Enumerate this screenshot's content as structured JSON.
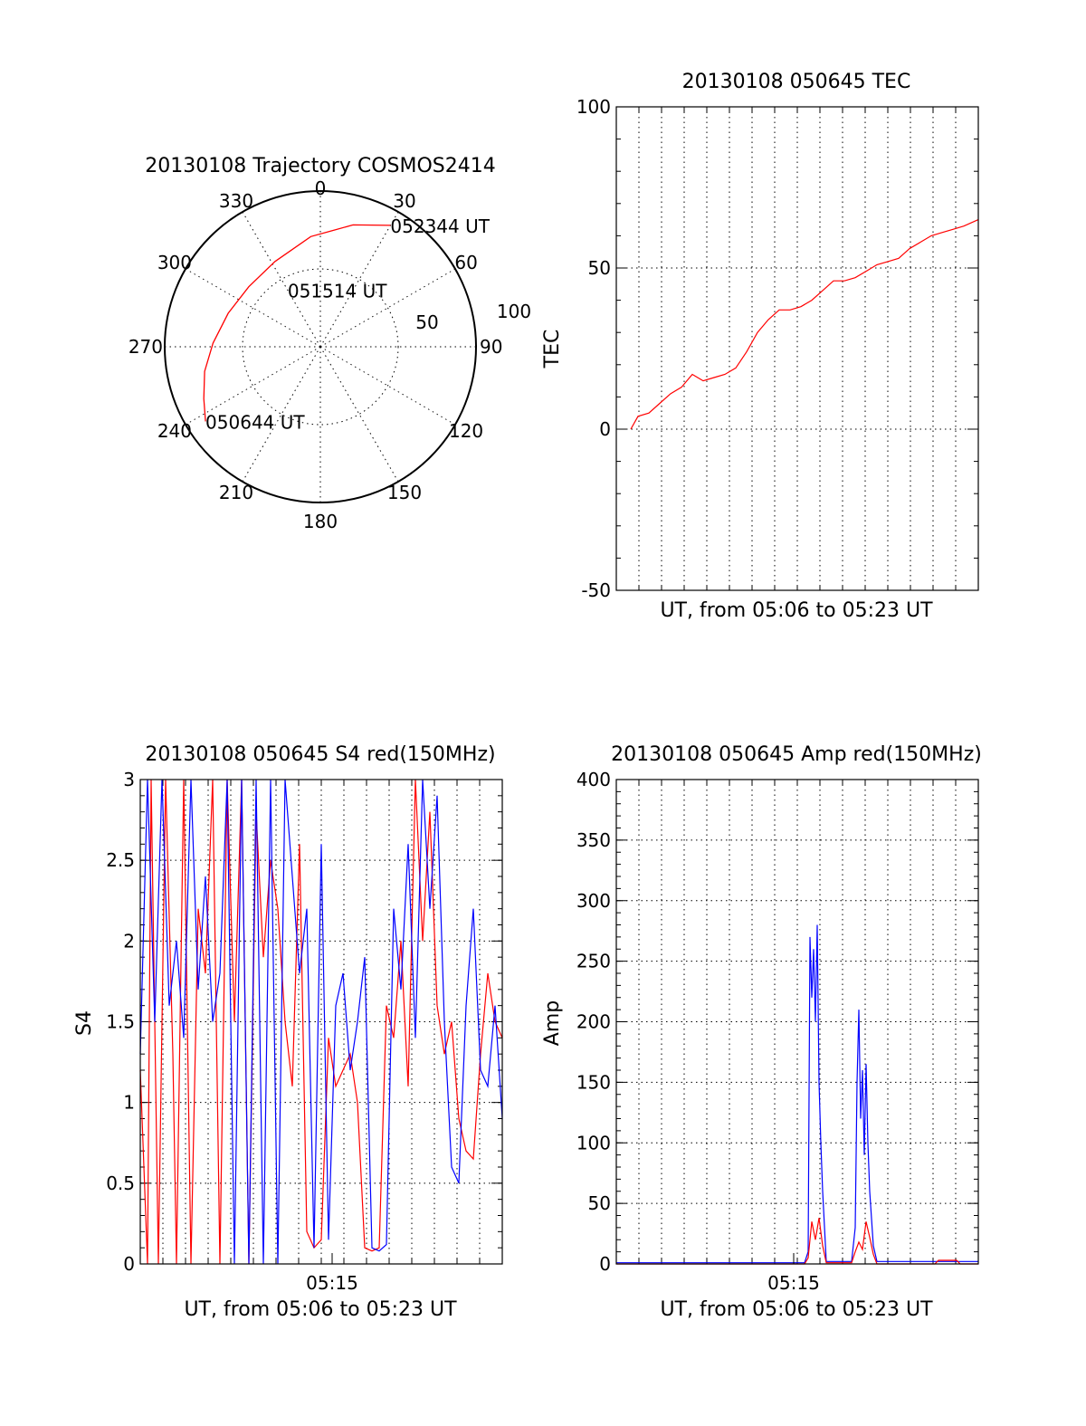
{
  "colors": {
    "red": "#ff0000",
    "blue": "#0000ff",
    "axis": "#000000"
  },
  "chart_data": [
    {
      "id": "trajectory",
      "type": "polar",
      "title": "20130108 Trajectory COSMOS2414",
      "angle_labels": [
        "0",
        "30",
        "60",
        "90",
        "120",
        "150",
        "180",
        "210",
        "240",
        "270",
        "300",
        "330"
      ],
      "radial_labels": [
        "50",
        "100"
      ],
      "radial_values": [
        50,
        100
      ],
      "rlim": [
        0,
        100
      ],
      "series": [
        {
          "color": "#ff0000",
          "az": [
            237,
            246,
            258,
            272,
            290,
            310,
            332,
            355,
            15,
            30
          ],
          "r": [
            88,
            82,
            76,
            69,
            63,
            60,
            62,
            71,
            81,
            90
          ]
        }
      ],
      "annotations": [
        {
          "text": "052344 UT",
          "az": 30,
          "r": 90
        },
        {
          "text": "051514 UT",
          "az": 330,
          "r": 42
        },
        {
          "text": "050644 UT",
          "az": 237,
          "r": 88
        }
      ]
    },
    {
      "id": "tec",
      "type": "line",
      "title": "20130108 050645 TEC",
      "xlabel": "UT, from 05:06 to 05:23 UT",
      "ylabel": "TEC",
      "ylim": [
        -50,
        100
      ],
      "yticks": [
        "-50",
        "0",
        "50",
        "100"
      ],
      "ytick_values": [
        -50,
        0,
        50,
        100
      ],
      "xlim": [
        0,
        1
      ],
      "grid": true,
      "series": [
        {
          "color": "#ff0000",
          "x": [
            0.04,
            0.06,
            0.09,
            0.12,
            0.15,
            0.18,
            0.21,
            0.24,
            0.27,
            0.3,
            0.33,
            0.36,
            0.39,
            0.42,
            0.45,
            0.48,
            0.51,
            0.54,
            0.57,
            0.6,
            0.63,
            0.66,
            0.69,
            0.72,
            0.75,
            0.78,
            0.81,
            0.84,
            0.87,
            0.9,
            0.93,
            0.96,
            1.0
          ],
          "y": [
            0,
            4,
            5,
            8,
            11,
            13,
            17,
            15,
            16,
            17,
            19,
            24,
            30,
            34,
            37,
            37,
            38,
            40,
            43,
            46,
            46,
            47,
            49,
            51,
            52,
            53,
            56,
            58,
            60,
            61,
            62,
            63,
            65
          ]
        }
      ]
    },
    {
      "id": "s4",
      "type": "line",
      "title": "20130108 050645 S4 red(150MHz)",
      "xlabel": "UT, from 05:06 to 05:23 UT",
      "ylabel": "S4",
      "ylim": [
        0,
        3
      ],
      "yticks": [
        "0",
        "0.5",
        "1",
        "1.5",
        "2",
        "2.5",
        "3"
      ],
      "ytick_values": [
        0,
        0.5,
        1,
        1.5,
        2,
        2.5,
        3
      ],
      "xticks": [
        "05:15"
      ],
      "xtick_positions": [
        0.53
      ],
      "xlim": [
        0,
        1
      ],
      "grid": true,
      "series": [
        {
          "color": "#ff0000",
          "x": [
            0.0,
            0.02,
            0.03,
            0.05,
            0.07,
            0.09,
            0.1,
            0.12,
            0.14,
            0.16,
            0.18,
            0.2,
            0.22,
            0.24,
            0.26,
            0.28,
            0.3,
            0.32,
            0.34,
            0.36,
            0.38,
            0.4,
            0.42,
            0.44,
            0.46,
            0.48,
            0.5,
            0.52,
            0.54,
            0.56,
            0.58,
            0.6,
            0.62,
            0.64,
            0.66,
            0.68,
            0.7,
            0.72,
            0.74,
            0.76,
            0.78,
            0.8,
            0.82,
            0.84,
            0.86,
            0.88,
            0.9,
            0.92,
            0.94,
            0.96,
            0.98,
            1.0
          ],
          "y": [
            1.2,
            0.0,
            3.0,
            0.0,
            3.0,
            1.3,
            0.0,
            3.0,
            0.0,
            2.2,
            1.8,
            3.0,
            0.0,
            3.0,
            1.5,
            3.0,
            0.0,
            2.8,
            1.9,
            2.5,
            2.2,
            1.5,
            1.1,
            2.6,
            0.2,
            0.1,
            0.15,
            1.4,
            1.1,
            1.2,
            1.3,
            1.0,
            0.1,
            0.08,
            0.1,
            1.6,
            1.4,
            2.0,
            1.1,
            3.0,
            2.0,
            2.8,
            1.6,
            1.3,
            1.5,
            0.9,
            0.7,
            0.65,
            1.3,
            1.8,
            1.5,
            1.4
          ]
        },
        {
          "color": "#0000ff",
          "x": [
            0.0,
            0.02,
            0.04,
            0.06,
            0.08,
            0.1,
            0.12,
            0.14,
            0.16,
            0.18,
            0.2,
            0.22,
            0.24,
            0.26,
            0.28,
            0.3,
            0.32,
            0.34,
            0.36,
            0.38,
            0.4,
            0.42,
            0.44,
            0.46,
            0.48,
            0.5,
            0.52,
            0.54,
            0.56,
            0.58,
            0.6,
            0.62,
            0.64,
            0.66,
            0.68,
            0.7,
            0.72,
            0.74,
            0.76,
            0.78,
            0.8,
            0.82,
            0.84,
            0.86,
            0.88,
            0.9,
            0.92,
            0.94,
            0.96,
            0.98,
            1.0
          ],
          "y": [
            1.3,
            3.0,
            1.5,
            3.0,
            1.6,
            2.0,
            1.4,
            3.0,
            1.7,
            2.4,
            1.5,
            1.8,
            3.0,
            0.0,
            3.0,
            0.0,
            3.0,
            0.0,
            3.0,
            0.0,
            3.0,
            2.4,
            1.8,
            2.2,
            0.1,
            2.6,
            0.15,
            1.6,
            1.8,
            1.2,
            1.5,
            1.9,
            0.1,
            0.08,
            0.12,
            2.2,
            1.7,
            2.6,
            1.4,
            3.0,
            2.2,
            2.9,
            1.5,
            0.6,
            0.5,
            1.6,
            2.2,
            1.2,
            1.1,
            1.6,
            0.9
          ]
        }
      ]
    },
    {
      "id": "amp",
      "type": "line",
      "title": "20130108 050645 Amp red(150MHz)",
      "xlabel": "UT, from 05:06 to 05:23 UT",
      "ylabel": "Amp",
      "ylim": [
        0,
        400
      ],
      "yticks": [
        "0",
        "50",
        "100",
        "150",
        "200",
        "250",
        "300",
        "350",
        "400"
      ],
      "ytick_values": [
        0,
        50,
        100,
        150,
        200,
        250,
        300,
        350,
        400
      ],
      "xticks": [
        "05:15"
      ],
      "xtick_positions": [
        0.49
      ],
      "xlim": [
        0,
        1
      ],
      "grid": true,
      "series": [
        {
          "color": "#0000ff",
          "x": [
            0.0,
            0.52,
            0.53,
            0.535,
            0.54,
            0.545,
            0.55,
            0.555,
            0.56,
            0.565,
            0.57,
            0.58,
            0.65,
            0.66,
            0.665,
            0.67,
            0.675,
            0.68,
            0.685,
            0.69,
            0.695,
            0.7,
            0.71,
            0.72,
            1.0
          ],
          "y": [
            1,
            1,
            10,
            270,
            220,
            260,
            200,
            280,
            150,
            100,
            60,
            2,
            2,
            30,
            150,
            210,
            120,
            160,
            90,
            165,
            100,
            60,
            15,
            2,
            2
          ]
        },
        {
          "color": "#ff0000",
          "x": [
            0.0,
            0.52,
            0.53,
            0.54,
            0.55,
            0.56,
            0.57,
            0.58,
            0.65,
            0.66,
            0.67,
            0.68,
            0.69,
            0.7,
            0.71,
            0.72,
            0.88,
            0.89,
            0.94,
            0.95,
            1.0
          ],
          "y": [
            0,
            0,
            5,
            35,
            20,
            38,
            15,
            1,
            1,
            10,
            18,
            12,
            35,
            22,
            8,
            0,
            0,
            3,
            3,
            0,
            0
          ]
        }
      ]
    }
  ]
}
